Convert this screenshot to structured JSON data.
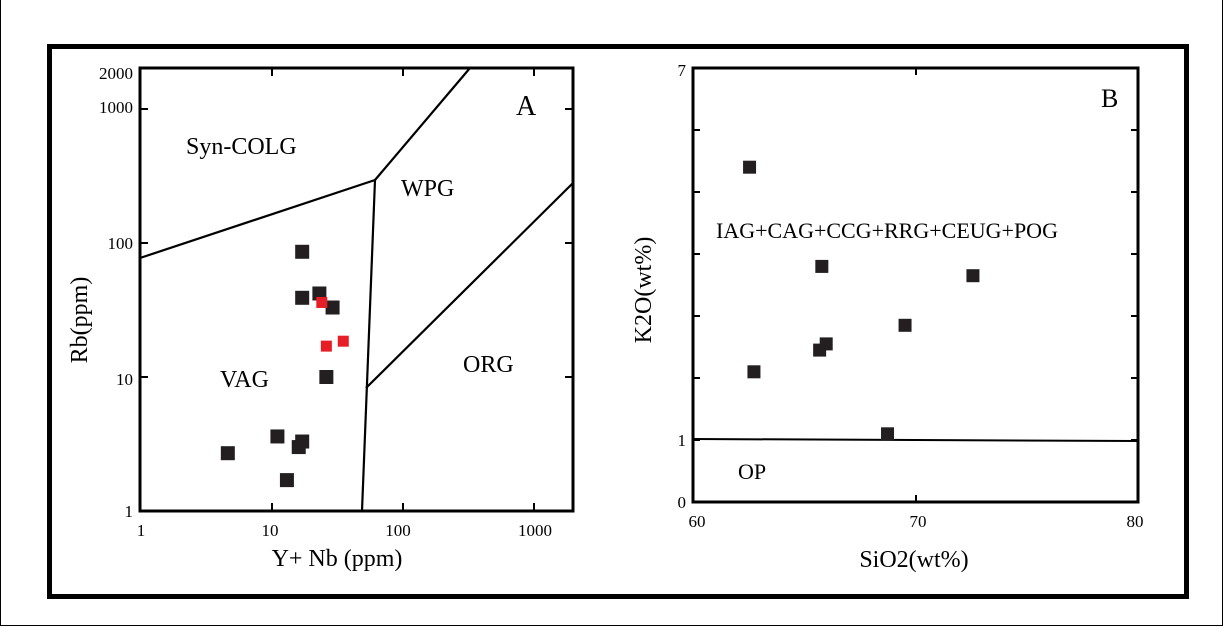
{
  "chart_data": [
    {
      "type": "scatter",
      "panel_letter": "A",
      "xlabel": "Y+ Nb (ppm)",
      "ylabel": "Rb(ppm)",
      "x_scale": "log",
      "y_scale": "log",
      "xlim": [
        1,
        2000
      ],
      "ylim": [
        1,
        2000
      ],
      "x_ticks": [
        "1",
        "10",
        "100",
        "1000"
      ],
      "y_ticks": [
        "1",
        "10",
        "100",
        "1000",
        "2000"
      ],
      "grid": false,
      "regions": [
        "Syn-COLG",
        "WPG",
        "VAG",
        "ORG"
      ],
      "series": [
        {
          "color": "#231f20",
          "points": [
            {
              "x": 17,
              "y": 86
            },
            {
              "x": 17,
              "y": 39
            },
            {
              "x": 23,
              "y": 42
            },
            {
              "x": 29,
              "y": 33
            },
            {
              "x": 26,
              "y": 10
            },
            {
              "x": 11,
              "y": 3.6
            },
            {
              "x": 17,
              "y": 3.3
            },
            {
              "x": 16,
              "y": 3.0
            },
            {
              "x": 13,
              "y": 1.7
            },
            {
              "x": 4.6,
              "y": 2.7
            }
          ]
        },
        {
          "color": "#e61e25",
          "points": [
            {
              "x": 24,
              "y": 36
            },
            {
              "x": 26,
              "y": 17
            },
            {
              "x": 35,
              "y": 18.5
            }
          ]
        }
      ]
    },
    {
      "type": "scatter",
      "panel_letter": "B",
      "xlabel": "SiO2(wt%)",
      "ylabel": "K2O(wt%)",
      "xlim": [
        60,
        80
      ],
      "ylim": [
        0,
        7
      ],
      "x_ticks": [
        "60",
        "70",
        "80"
      ],
      "y_ticks": [
        "0",
        "1",
        "7"
      ],
      "grid": false,
      "regions": [
        "IAG+CAG+CCG+RRG+CEUG+POG",
        "OP"
      ],
      "boundary_y": 1,
      "series": [
        {
          "color": "#231f20",
          "points": [
            {
              "x": 62.4,
              "y": 5.4
            },
            {
              "x": 62.6,
              "y": 2.1
            },
            {
              "x": 65.7,
              "y": 3.8
            },
            {
              "x": 65.6,
              "y": 2.45
            },
            {
              "x": 65.9,
              "y": 2.55
            },
            {
              "x": 68.7,
              "y": 1.1
            },
            {
              "x": 69.5,
              "y": 2.85
            },
            {
              "x": 72.6,
              "y": 3.65
            }
          ]
        }
      ]
    }
  ]
}
